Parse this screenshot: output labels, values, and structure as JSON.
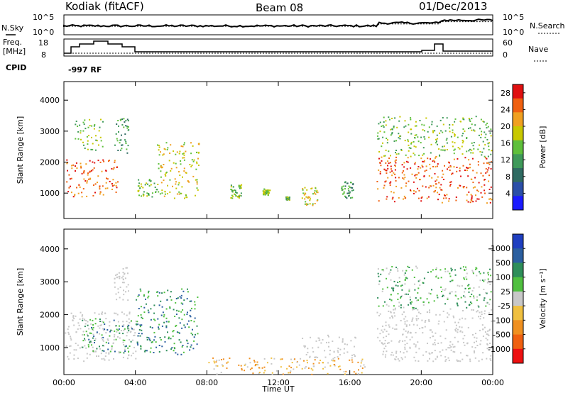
{
  "header": {
    "station": "Kodiak (fitACF)",
    "beam": "Beam 08",
    "date": "01/Dec/2013"
  },
  "top_panels": {
    "nsky_label": "N.Sky",
    "nsky_ticks": [
      "10^5",
      "10^0"
    ],
    "nsearch_label": "N.Search",
    "nsearch_ticks": [
      "10^5",
      "10^0"
    ],
    "freq_label": "Freq.",
    "freq_unit": "[MHz]",
    "freq_ticks": [
      "18",
      "8"
    ],
    "nave_label": "Nave",
    "nave_ticks": [
      "60",
      "0"
    ],
    "cpid_label": "CPID",
    "cpid_value": "-997 RF"
  },
  "colors": {
    "power": [
      "#1b1bff",
      "#2b4fa8",
      "#2f6b62",
      "#3f9a5a",
      "#5fc03c",
      "#c8c800",
      "#f0a020",
      "#f06010",
      "#e01010"
    ],
    "velocity": [
      "#ee1111",
      "#f06010",
      "#f09020",
      "#f0c040",
      "#c8c8c8",
      "#50c040",
      "#2e8e5a",
      "#2b5fa0",
      "#1f3fc0"
    ],
    "ground": "#c8c8c8"
  },
  "chart_data": [
    {
      "type": "heatmap",
      "title": "",
      "xlabel": "Time UT",
      "ylabel": "Slant Range [km]",
      "xticks": [
        "00:00",
        "04:00",
        "08:00",
        "12:00",
        "16:00",
        "20:00",
        "00:00"
      ],
      "x_hours": [
        0,
        4,
        8,
        12,
        16,
        20,
        24
      ],
      "yticks": [
        "1000",
        "2000",
        "3000",
        "4000"
      ],
      "y_values": [
        1000,
        2000,
        3000,
        4000
      ],
      "ylim": [
        180,
        4600
      ],
      "colorbar_label": "Power [dB]",
      "colorbar_ticks": [
        "4",
        "8",
        "12",
        "16",
        "20",
        "24",
        "28"
      ],
      "colorbar_range": [
        0,
        30
      ],
      "scatter_regions": [
        {
          "t0": 0.0,
          "t1": 3.0,
          "r0": 900,
          "r1": 2100,
          "level": 7
        },
        {
          "t0": 0.6,
          "t1": 2.2,
          "r0": 2400,
          "r1": 3400,
          "level": 4
        },
        {
          "t0": 2.8,
          "t1": 3.6,
          "r0": 2300,
          "r1": 3500,
          "level": 3
        },
        {
          "t0": 4.1,
          "t1": 5.2,
          "r0": 900,
          "r1": 1500,
          "level": 4
        },
        {
          "t0": 5.2,
          "t1": 7.6,
          "r0": 850,
          "r1": 2700,
          "level": 5
        },
        {
          "t0": 9.3,
          "t1": 9.9,
          "r0": 850,
          "r1": 1300,
          "level": 4
        },
        {
          "t0": 11.1,
          "t1": 11.5,
          "r0": 950,
          "r1": 1150,
          "level": 4
        },
        {
          "t0": 12.4,
          "t1": 12.6,
          "r0": 800,
          "r1": 900,
          "level": 4
        },
        {
          "t0": 13.3,
          "t1": 14.2,
          "r0": 600,
          "r1": 1200,
          "level": 5
        },
        {
          "t0": 15.5,
          "t1": 16.2,
          "r0": 850,
          "r1": 1400,
          "level": 3
        },
        {
          "t0": 17.5,
          "t1": 23.9,
          "r0": 700,
          "r1": 2200,
          "level": 7
        },
        {
          "t0": 17.5,
          "t1": 23.9,
          "r0": 2200,
          "r1": 3500,
          "level": 4
        }
      ]
    },
    {
      "type": "heatmap",
      "title": "",
      "xlabel": "Time UT",
      "ylabel": "Slant Range [km]",
      "xticks": [
        "00:00",
        "04:00",
        "08:00",
        "12:00",
        "16:00",
        "20:00",
        "00:00"
      ],
      "x_hours": [
        0,
        4,
        8,
        12,
        16,
        20,
        24
      ],
      "yticks": [
        "1000",
        "2000",
        "3000",
        "4000"
      ],
      "y_values": [
        1000,
        2000,
        3000,
        4000
      ],
      "ylim": [
        180,
        4600
      ],
      "colorbar_label": "Velocity [m s⁻¹]",
      "colorbar_ticks": [
        "1000",
        "500",
        "100",
        "25",
        "-25",
        "-100",
        "-500",
        "-1000"
      ],
      "scatter_regions": [
        {
          "t0": 0.0,
          "t1": 4.0,
          "r0": 600,
          "r1": 2100,
          "level": "ground"
        },
        {
          "t0": 1.0,
          "t1": 3.8,
          "r0": 850,
          "r1": 1900,
          "level": 6
        },
        {
          "t0": 2.8,
          "t1": 3.6,
          "r0": 2400,
          "r1": 3500,
          "level": "ground"
        },
        {
          "t0": 4.0,
          "t1": 7.5,
          "r0": 800,
          "r1": 2800,
          "level": 6
        },
        {
          "t0": 8.0,
          "t1": 17.0,
          "r0": 200,
          "r1": 700,
          "level": 3
        },
        {
          "t0": 13.3,
          "t1": 16.3,
          "r0": 700,
          "r1": 1400,
          "level": "ground"
        },
        {
          "t0": 17.5,
          "t1": 23.9,
          "r0": 600,
          "r1": 2200,
          "level": "ground"
        },
        {
          "t0": 17.5,
          "t1": 23.9,
          "r0": 2200,
          "r1": 3500,
          "level": 5
        }
      ]
    }
  ]
}
